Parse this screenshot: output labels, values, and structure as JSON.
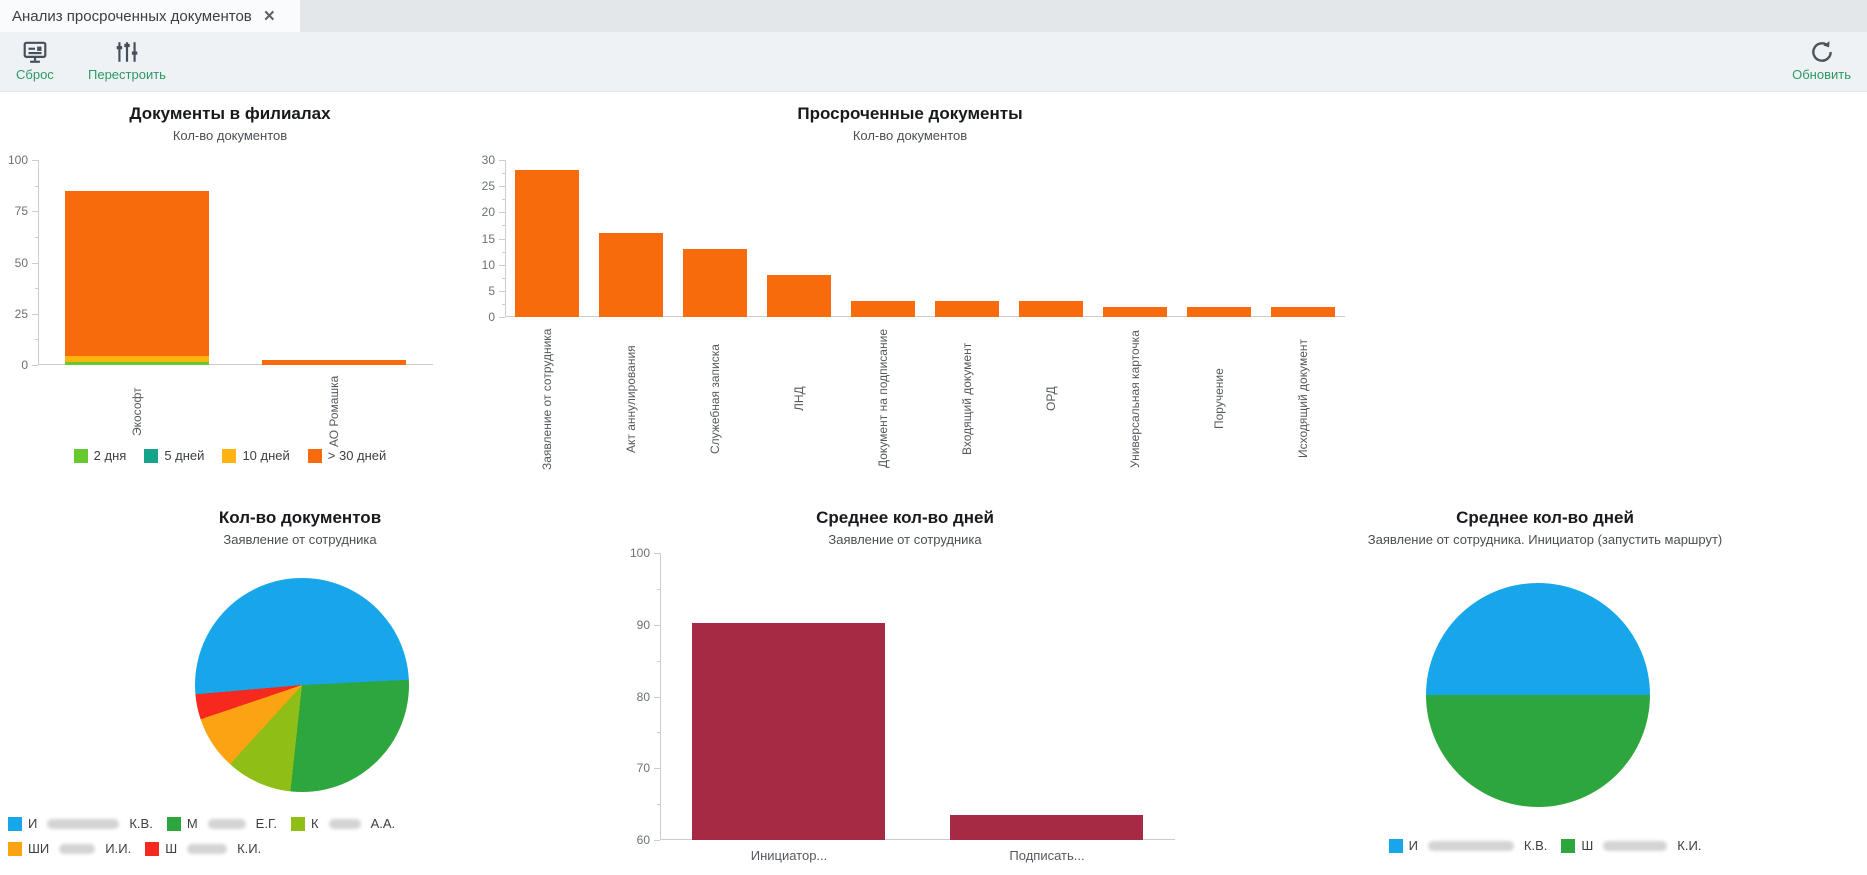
{
  "tab": {
    "title": "Анализ просроченных документов"
  },
  "icons": {
    "close": "×"
  },
  "toolbar": {
    "reset_label": "Сброс",
    "rebuild_label": "Перестроить",
    "refresh_label": "Обновить"
  },
  "colors": {
    "accent_green_label": "#2C9A62",
    "icon_dark": "#454F5B",
    "bar_orange": "#F76B0C",
    "bar_maroon": "#A72A44",
    "axis_gray": "#C7CDD3"
  },
  "chart_data": [
    {
      "id": "docs-by-branch",
      "type": "bar",
      "stacked": true,
      "title": "Документы в филиалах",
      "subtitle": "Кол-во документов",
      "categories": [
        "Экософт",
        "АО Ромашка"
      ],
      "series": [
        {
          "name": "2 дня",
          "color": "#66C92E",
          "values": [
            1.5,
            0
          ]
        },
        {
          "name": "5 дней",
          "color": "#16A38C",
          "values": [
            0,
            0
          ]
        },
        {
          "name": "10 дней",
          "color": "#FFB30F",
          "values": [
            3,
            0
          ]
        },
        {
          "name": "> 30 дней",
          "color": "#F76B0C",
          "values": [
            80.5,
            2.5
          ]
        }
      ],
      "ylim": [
        0,
        100
      ],
      "yticks": [
        0,
        25,
        50,
        75,
        100
      ],
      "legend_position": "bottom",
      "x_labels_rotated": true
    },
    {
      "id": "overdue-by-type",
      "type": "bar",
      "title": "Просроченные документы",
      "subtitle": "Кол-во документов",
      "categories": [
        "Заявление от сотрудника",
        "Акт аннулирования",
        "Служебная записка",
        "ЛНД",
        "Документ на подписание",
        "Входящий документ",
        "ОРД",
        "Универсальная карточка",
        "Поручение",
        "Исходящий документ"
      ],
      "values": [
        28,
        16,
        13,
        8,
        3,
        3,
        3,
        2,
        2,
        2
      ],
      "color": "#F76B0C",
      "ylim": [
        0,
        30
      ],
      "yticks": [
        0,
        5,
        10,
        15,
        20,
        25,
        30
      ],
      "x_labels_rotated": true
    },
    {
      "id": "docs-count-pie",
      "type": "pie",
      "title": "Кол-во документов",
      "subtitle": "Заявление от сотрудника",
      "slices": [
        {
          "label_prefix": "И",
          "label_suffix": "К.В.",
          "redacted": true,
          "redacted_width": 72,
          "color": "#17A6EA",
          "value_pct": 50.6
        },
        {
          "label_prefix": "М",
          "label_suffix": "Е.Г.",
          "redacted": true,
          "redacted_width": 38,
          "color": "#2EA63E",
          "value_pct": 27.5
        },
        {
          "label_prefix": "К",
          "label_suffix": "А.А.",
          "redacted": true,
          "redacted_width": 32,
          "color": "#8FBE16",
          "value_pct": 10.0
        },
        {
          "label_prefix": "ШИ",
          "label_suffix": "И.И.",
          "redacted": true,
          "redacted_width": 36,
          "color": "#FBA312",
          "value_pct": 8.1
        },
        {
          "label_prefix": "Ш",
          "label_suffix": "К.И.",
          "redacted": true,
          "redacted_width": 40,
          "color": "#F5291D",
          "value_pct": 3.8
        }
      ]
    },
    {
      "id": "avg-days-bar",
      "type": "bar",
      "title": "Среднее кол-во дней",
      "subtitle": "Заявление от сотрудника",
      "categories": [
        "Инициатор...",
        "Подписать..."
      ],
      "values": [
        90.3,
        63.5
      ],
      "color": "#A72A44",
      "ylim": [
        60,
        100
      ],
      "yticks": [
        60,
        70,
        80,
        90,
        100
      ]
    },
    {
      "id": "avg-days-pie",
      "type": "pie",
      "title": "Среднее кол-во дней",
      "subtitle": "Заявление от сотрудника. Инициатор (запустить маршрут)",
      "slices": [
        {
          "label_prefix": "И",
          "label_suffix": "К.В.",
          "redacted": true,
          "redacted_width": 86,
          "color": "#17A6EA",
          "value_pct": 50
        },
        {
          "label_prefix": "Ш",
          "label_suffix": "К.И.",
          "redacted": true,
          "redacted_width": 64,
          "color": "#2EA63E",
          "value_pct": 50
        }
      ]
    }
  ]
}
